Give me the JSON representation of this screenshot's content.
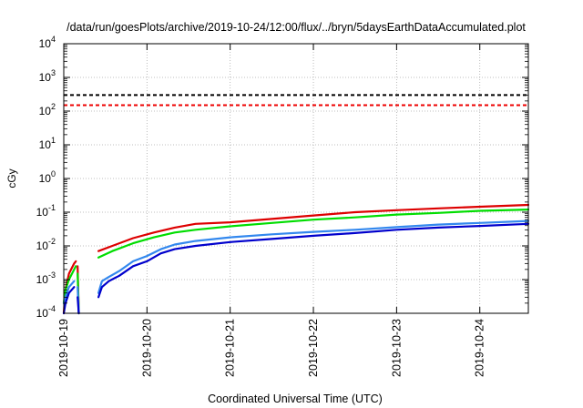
{
  "chart_data": {
    "type": "line",
    "title": "/data/run/goesPlots/archive/2019-10-24/12:00/flux/../bryn/5daysEarthDataAccumulated.plot",
    "xlabel": "Coordinated Universal Time (UTC)",
    "ylabel": "cGy",
    "y_scale": "log",
    "ylim": [
      0.0001,
      10000
    ],
    "y_ticks": [
      {
        "value": 0.0001,
        "base": "10",
        "exp": "-4"
      },
      {
        "value": 0.001,
        "base": "10",
        "exp": "-3"
      },
      {
        "value": 0.01,
        "base": "10",
        "exp": "-2"
      },
      {
        "value": 0.1,
        "base": "10",
        "exp": "-1"
      },
      {
        "value": 1,
        "base": "10",
        "exp": "0"
      },
      {
        "value": 10,
        "base": "10",
        "exp": "1"
      },
      {
        "value": 100,
        "base": "10",
        "exp": "2"
      },
      {
        "value": 1000,
        "base": "10",
        "exp": "3"
      },
      {
        "value": 10000,
        "base": "10",
        "exp": "4"
      }
    ],
    "x_type": "date",
    "xlim": [
      "2019-10-19T00:00",
      "2019-10-24T14:00"
    ],
    "x_ticks": [
      "2019-10-19",
      "2019-10-20",
      "2019-10-21",
      "2019-10-22",
      "2019-10-23",
      "2019-10-24"
    ],
    "grid": true,
    "reference_lines": [
      {
        "value": 300,
        "color": "#000000",
        "style": "dashed"
      },
      {
        "value": 150,
        "color": "#ee0000",
        "style": "dashed"
      }
    ],
    "series": [
      {
        "color": "#dd0000",
        "segments": [
          [
            [
              "2019-10-19T00:00",
              0.0001
            ],
            [
              "2019-10-19T00:30",
              0.0005
            ],
            [
              "2019-10-19T01:30",
              0.0015
            ],
            [
              "2019-10-19T03:00",
              0.003
            ],
            [
              "2019-10-19T03:30",
              0.0035
            ]
          ],
          [
            [
              "2019-10-19T04:00",
              0.0025
            ],
            [
              "2019-10-19T04:20",
              0.0001
            ]
          ],
          [
            [
              "2019-10-19T10:00",
              0.007
            ],
            [
              "2019-10-19T14:00",
              0.01
            ],
            [
              "2019-10-19T20:00",
              0.017
            ],
            [
              "2019-10-20T02:00",
              0.025
            ],
            [
              "2019-10-20T08:00",
              0.035
            ],
            [
              "2019-10-20T14:00",
              0.045
            ],
            [
              "2019-10-21T00:00",
              0.05
            ],
            [
              "2019-10-21T12:00",
              0.063
            ],
            [
              "2019-10-22T00:00",
              0.08
            ],
            [
              "2019-10-22T12:00",
              0.1
            ],
            [
              "2019-10-23T00:00",
              0.115
            ],
            [
              "2019-10-23T12:00",
              0.13
            ],
            [
              "2019-10-24T00:00",
              0.145
            ],
            [
              "2019-10-24T14:00",
              0.165
            ]
          ]
        ]
      },
      {
        "color": "#00dd00",
        "segments": [
          [
            [
              "2019-10-19T00:00",
              0.0002
            ],
            [
              "2019-10-19T00:30",
              0.0005
            ],
            [
              "2019-10-19T01:30",
              0.001
            ],
            [
              "2019-10-19T03:00",
              0.002
            ],
            [
              "2019-10-19T03:30",
              0.0025
            ]
          ],
          [
            [
              "2019-10-19T04:00",
              0.0015
            ],
            [
              "2019-10-19T04:20",
              0.0001
            ]
          ],
          [
            [
              "2019-10-19T10:00",
              0.0045
            ],
            [
              "2019-10-19T14:00",
              0.007
            ],
            [
              "2019-10-19T20:00",
              0.012
            ],
            [
              "2019-10-20T02:00",
              0.018
            ],
            [
              "2019-10-20T08:00",
              0.025
            ],
            [
              "2019-10-20T14:00",
              0.03
            ],
            [
              "2019-10-21T00:00",
              0.038
            ],
            [
              "2019-10-21T12:00",
              0.048
            ],
            [
              "2019-10-22T00:00",
              0.06
            ],
            [
              "2019-10-22T12:00",
              0.07
            ],
            [
              "2019-10-23T00:00",
              0.085
            ],
            [
              "2019-10-23T12:00",
              0.095
            ],
            [
              "2019-10-24T00:00",
              0.11
            ],
            [
              "2019-10-24T14:00",
              0.12
            ]
          ]
        ]
      },
      {
        "color": "#3388ee",
        "segments": [
          [
            [
              "2019-10-19T00:00",
              0.0002
            ],
            [
              "2019-10-19T00:30",
              0.0003
            ],
            [
              "2019-10-19T01:30",
              0.0006
            ],
            [
              "2019-10-19T03:00",
              0.0009
            ]
          ],
          [
            [
              "2019-10-19T04:00",
              0.0006
            ],
            [
              "2019-10-19T04:20",
              0.0001
            ]
          ],
          [
            [
              "2019-10-19T10:00",
              0.0004
            ],
            [
              "2019-10-19T11:00",
              0.0009
            ],
            [
              "2019-10-19T13:00",
              0.0012
            ],
            [
              "2019-10-19T16:00",
              0.0018
            ],
            [
              "2019-10-19T20:00",
              0.0035
            ],
            [
              "2019-10-20T00:00",
              0.005
            ],
            [
              "2019-10-20T04:00",
              0.008
            ],
            [
              "2019-10-20T08:00",
              0.011
            ],
            [
              "2019-10-20T14:00",
              0.014
            ],
            [
              "2019-10-21T00:00",
              0.018
            ],
            [
              "2019-10-21T12:00",
              0.022
            ],
            [
              "2019-10-22T00:00",
              0.026
            ],
            [
              "2019-10-22T12:00",
              0.03
            ],
            [
              "2019-10-23T00:00",
              0.036
            ],
            [
              "2019-10-23T12:00",
              0.043
            ],
            [
              "2019-10-24T00:00",
              0.048
            ],
            [
              "2019-10-24T14:00",
              0.055
            ]
          ]
        ]
      },
      {
        "color": "#0000cc",
        "segments": [
          [
            [
              "2019-10-19T00:00",
              0.0001
            ],
            [
              "2019-10-19T00:30",
              0.0002
            ],
            [
              "2019-10-19T01:30",
              0.0004
            ],
            [
              "2019-10-19T03:00",
              0.0006
            ]
          ],
          [
            [
              "2019-10-19T04:00",
              0.0003
            ],
            [
              "2019-10-19T04:20",
              0.0001
            ]
          ],
          [
            [
              "2019-10-19T10:00",
              0.0003
            ],
            [
              "2019-10-19T11:00",
              0.0006
            ],
            [
              "2019-10-19T13:00",
              0.0009
            ],
            [
              "2019-10-19T16:00",
              0.0013
            ],
            [
              "2019-10-19T20:00",
              0.0025
            ],
            [
              "2019-10-20T00:00",
              0.0035
            ],
            [
              "2019-10-20T04:00",
              0.006
            ],
            [
              "2019-10-20T08:00",
              0.008
            ],
            [
              "2019-10-20T14:00",
              0.01
            ],
            [
              "2019-10-21T00:00",
              0.013
            ],
            [
              "2019-10-21T12:00",
              0.016
            ],
            [
              "2019-10-22T00:00",
              0.02
            ],
            [
              "2019-10-22T12:00",
              0.024
            ],
            [
              "2019-10-23T00:00",
              0.03
            ],
            [
              "2019-10-23T12:00",
              0.035
            ],
            [
              "2019-10-24T00:00",
              0.039
            ],
            [
              "2019-10-24T14:00",
              0.045
            ]
          ]
        ]
      }
    ]
  }
}
